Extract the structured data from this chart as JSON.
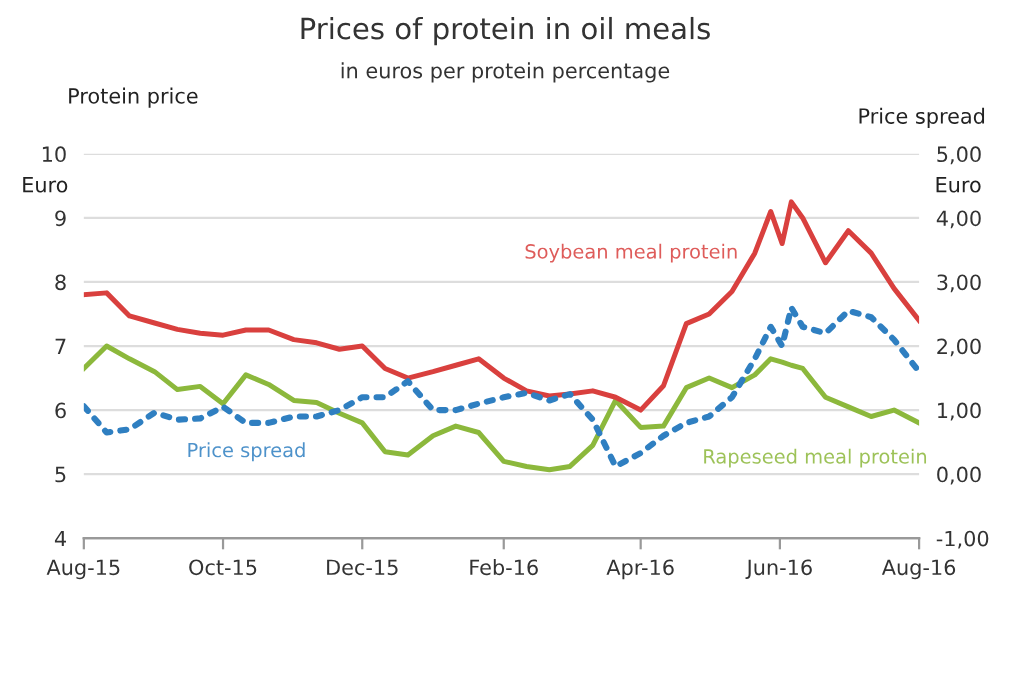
{
  "chart_data": {
    "type": "line",
    "title": "Prices of protein in oil meals",
    "subtitle": "in euros per protein percentage",
    "ylabel": "Protein price",
    "y2label": "Price spread",
    "annotations": [
      "Euro",
      "Euro"
    ],
    "x": [
      "2015-08-01",
      "2015-08-11",
      "2015-08-21",
      "2015-09-01",
      "2015-09-11",
      "2015-09-21",
      "2015-10-01",
      "2015-10-11",
      "2015-10-21",
      "2015-11-01",
      "2015-11-11",
      "2015-11-21",
      "2015-12-01",
      "2015-12-11",
      "2015-12-21",
      "2016-01-01",
      "2016-01-11",
      "2016-01-21",
      "2016-02-01",
      "2016-02-11",
      "2016-02-21",
      "2016-03-01",
      "2016-03-11",
      "2016-03-21",
      "2016-04-01",
      "2016-04-11",
      "2016-04-21",
      "2016-05-01",
      "2016-05-11",
      "2016-05-21",
      "2016-05-28",
      "2016-06-02",
      "2016-06-06",
      "2016-06-11",
      "2016-06-21",
      "2016-07-01",
      "2016-07-11",
      "2016-07-21",
      "2016-08-01"
    ],
    "series": [
      {
        "name": "Soybean meal protein",
        "color": "#d9403e",
        "values": [
          7.8,
          7.83,
          7.47,
          7.36,
          7.26,
          7.2,
          7.17,
          7.25,
          7.25,
          7.1,
          7.05,
          6.95,
          7.0,
          6.65,
          6.5,
          6.6,
          6.7,
          6.8,
          6.5,
          6.3,
          6.22,
          6.25,
          6.3,
          6.2,
          6.0,
          6.38,
          7.35,
          7.5,
          7.85,
          8.45,
          9.1,
          8.6,
          9.25,
          9.0,
          8.3,
          8.8,
          8.45,
          7.9,
          7.4
        ]
      },
      {
        "name": "Rapeseed meal protein",
        "color": "#8cb83c",
        "values": [
          6.65,
          7.0,
          6.8,
          6.6,
          6.32,
          6.37,
          6.1,
          6.55,
          6.4,
          6.15,
          6.12,
          5.95,
          5.8,
          5.35,
          5.3,
          5.6,
          5.75,
          5.65,
          5.2,
          5.12,
          5.07,
          5.12,
          5.45,
          6.15,
          5.73,
          5.75,
          6.35,
          6.5,
          6.35,
          6.55,
          6.8,
          6.75,
          6.7,
          6.65,
          6.2,
          6.05,
          5.9,
          6.0,
          5.8
        ]
      },
      {
        "name": "Price spread",
        "color": "#2f7fc1",
        "axis": "y2",
        "line_style": "dotted",
        "values": [
          1.06,
          0.65,
          0.7,
          0.96,
          0.85,
          0.87,
          1.05,
          0.8,
          0.8,
          0.9,
          0.9,
          1.0,
          1.2,
          1.2,
          1.45,
          1.0,
          1.0,
          1.1,
          1.2,
          1.27,
          1.15,
          1.25,
          0.85,
          0.12,
          0.33,
          0.6,
          0.8,
          0.9,
          1.2,
          1.8,
          2.3,
          2.0,
          2.6,
          2.3,
          2.2,
          2.55,
          2.45,
          2.1,
          1.6
        ]
      }
    ],
    "xlim": [
      "2015-08-01",
      "2016-08-01"
    ],
    "xticks": [
      {
        "value": "2015-08-01",
        "label": "Aug-15"
      },
      {
        "value": "2015-10-01",
        "label": "Oct-15"
      },
      {
        "value": "2015-12-01",
        "label": "Dec-15"
      },
      {
        "value": "2016-02-01",
        "label": "Feb-16"
      },
      {
        "value": "2016-04-01",
        "label": "Apr-16"
      },
      {
        "value": "2016-06-01",
        "label": "Jun-16"
      },
      {
        "value": "2016-08-01",
        "label": "Aug-16"
      }
    ],
    "ylim": [
      4,
      10
    ],
    "yticks": [
      4,
      5,
      6,
      7,
      8,
      9,
      10
    ],
    "y2lim": [
      -1,
      5
    ],
    "y2ticks": [
      {
        "value": -1,
        "label": "-1,00"
      },
      {
        "value": 0,
        "label": "0,00"
      },
      {
        "value": 1,
        "label": "1,00"
      },
      {
        "value": 2,
        "label": "2,00"
      },
      {
        "value": 3,
        "label": "3,00"
      },
      {
        "value": 4,
        "label": "4,00"
      },
      {
        "value": 5,
        "label": "5,00"
      }
    ],
    "grid": "y",
    "legend": false
  }
}
